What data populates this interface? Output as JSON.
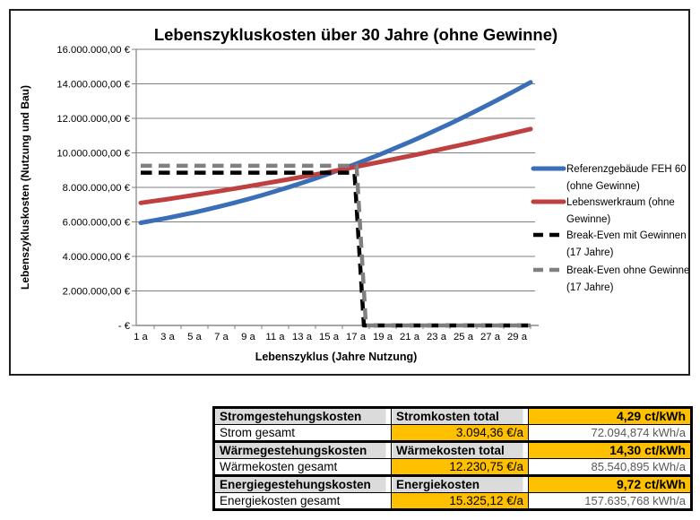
{
  "chart_data": {
    "type": "line",
    "title": "Lebenszykluskosten über 30 Jahre (ohne Gewinne)",
    "xlabel": "Lebenszyklus (Jahre Nutzung)",
    "ylabel": "Lebenszykluskosten (Nutzung und Bau)",
    "xlim": [
      1,
      30
    ],
    "ylim": [
      0,
      16000000
    ],
    "y_tick_step": 2000000,
    "grid": "horizontal",
    "legend_position": "right",
    "y_tick_labels": [
      "-   €",
      "2.000.000,00 €",
      "4.000.000,00 €",
      "6.000.000,00 €",
      "8.000.000,00 €",
      "10.000.000,00 €",
      "12.000.000,00 €",
      "14.000.000,00 €",
      "16.000.000,00 €"
    ],
    "x_tick_labels": [
      "1 a",
      "3 a",
      "5 a",
      "7 a",
      "9 a",
      "11 a",
      "13 a",
      "15 a",
      "17 a",
      "19 a",
      "21 a",
      "23 a",
      "25 a",
      "27 a",
      "29 a"
    ],
    "x_tick_years": [
      1,
      3,
      5,
      7,
      9,
      11,
      13,
      15,
      17,
      19,
      21,
      23,
      25,
      27,
      29
    ],
    "series": [
      {
        "name": "Referenzgebäude FEH 60 (ohne Gewinne)",
        "color": "#3A6FB7",
        "style": "solid",
        "values": [
          5950000,
          6090000,
          6230000,
          6390000,
          6550000,
          6730000,
          6920000,
          7110000,
          7320000,
          7540000,
          7770000,
          8010000,
          8260000,
          8520000,
          8790000,
          9070000,
          9360000,
          9660000,
          9970000,
          10300000,
          10630000,
          10970000,
          11330000,
          11690000,
          12070000,
          12450000,
          12850000,
          13250000,
          13670000,
          14090000
        ]
      },
      {
        "name": "Lebenswerkraum (ohne Gewinne)",
        "color": "#BE4040",
        "style": "solid",
        "values": [
          7100000,
          7210000,
          7320000,
          7440000,
          7560000,
          7680000,
          7800000,
          7930000,
          8060000,
          8200000,
          8330000,
          8470000,
          8610000,
          8750000,
          8890000,
          9040000,
          9190000,
          9350000,
          9500000,
          9660000,
          9820000,
          9980000,
          10150000,
          10320000,
          10490000,
          10660000,
          10840000,
          11020000,
          11200000,
          11380000
        ]
      },
      {
        "name": "Break-Even mit Gewinnen (17 Jahre)",
        "color": "#000000",
        "style": "dashed",
        "x": [
          1,
          16.9,
          17.6,
          30
        ],
        "values": [
          8850000,
          8850000,
          0,
          0
        ]
      },
      {
        "name": "Break-Even ohne Gewinne (17 Jahre)",
        "color": "#808080",
        "style": "dashed",
        "x": [
          1,
          17.05,
          17.75,
          30
        ],
        "values": [
          9250000,
          9250000,
          0,
          0
        ]
      }
    ],
    "legend": [
      {
        "lines": [
          "Referenzgebäude FEH 60",
          "(ohne Gewinne)"
        ],
        "color": "#3A6FB7",
        "style": "solid"
      },
      {
        "lines": [
          "Lebenswerkraum (ohne",
          "Gewinne)"
        ],
        "color": "#BE4040",
        "style": "solid"
      },
      {
        "lines": [
          "Break-Even mit Gewinnen",
          "(17 Jahre)"
        ],
        "color": "#000000",
        "style": "dashed"
      },
      {
        "lines": [
          "Break-Even ohne Gewinne",
          "(17 Jahre)"
        ],
        "color": "#808080",
        "style": "dashed"
      }
    ]
  },
  "table": {
    "rows": [
      {
        "cells": [
          "Stromgestehungskosten",
          "Stromkosten total",
          "4,29 ct/kWh"
        ]
      },
      {
        "cells": [
          "Strom gesamt",
          "3.094,36 €/a",
          "72.094,874 kWh/a"
        ]
      },
      {
        "cells": [
          "Wärmegestehungskosten",
          "Wärmekosten total",
          "14,30 ct/kWh"
        ]
      },
      {
        "cells": [
          "Wärmekosten gesamt",
          "12.230,75 €/a",
          "85.540,895 kWh/a"
        ]
      },
      {
        "cells": [
          "Energiegestehungskosten",
          "Energiekosten",
          "9,72 ct/kWh"
        ]
      },
      {
        "cells": [
          "Energiekosten gesamt",
          "15.325,12 €/a",
          "157.635,768 kWh/a"
        ]
      }
    ]
  },
  "colors": {
    "accent_orange": "#FFC000",
    "header_gray": "#DBDBDB",
    "series_blue": "#3A6FB7",
    "series_red": "#BE4040",
    "break_even_black": "#000000",
    "break_even_gray": "#808080"
  }
}
